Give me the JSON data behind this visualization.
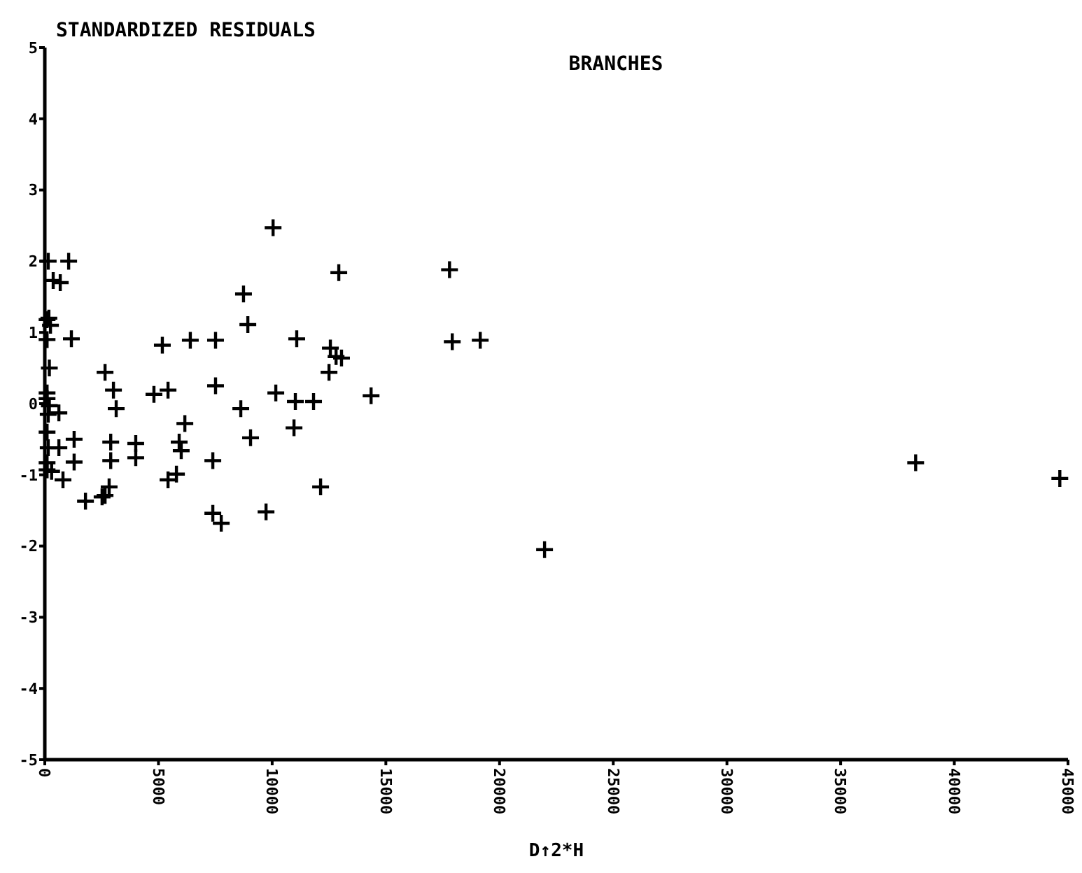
{
  "chart_data": {
    "type": "scatter",
    "title": "BRANCHES",
    "ylabel": "STANDARDIZED RESIDUALS",
    "xlabel": "D↑2*H",
    "marker": "cross",
    "grid": false,
    "xlim": [
      0,
      45000
    ],
    "ylim": [
      -5,
      5
    ],
    "xticks": [
      0,
      5000,
      10000,
      15000,
      20000,
      25000,
      30000,
      35000,
      40000,
      45000
    ],
    "yticks": [
      -5,
      -4,
      -3,
      -2,
      -1,
      0,
      1,
      2,
      3,
      4,
      5
    ],
    "series": [
      {
        "color": "#000000",
        "x": [
          10040,
          1050,
          370,
          680,
          180,
          250,
          1170,
          8740,
          8930,
          12930,
          17800,
          17920,
          19150,
          5170,
          6400,
          7510,
          11080,
          12560,
          12810,
          13050,
          12500,
          2650,
          3020,
          3140,
          4800,
          5420,
          7510,
          8620,
          10160,
          11020,
          11820,
          14350,
          6160,
          9050,
          10960,
          1290,
          2900,
          2900,
          4000,
          4000,
          5910,
          6000,
          7390,
          620,
          1290,
          300,
          100,
          800,
          2830,
          2650,
          1790,
          2520,
          5420,
          5790,
          7390,
          7760,
          9730,
          12130,
          21980,
          38300,
          44640,
          150,
          100,
          200,
          100,
          100,
          200,
          150,
          100,
          620,
          150,
          100,
          100
        ],
        "values": [
          2.47,
          2.0,
          1.73,
          1.7,
          1.2,
          1.1,
          0.91,
          1.54,
          1.11,
          1.84,
          1.88,
          0.87,
          0.89,
          0.82,
          0.89,
          0.89,
          0.91,
          0.78,
          0.66,
          0.64,
          0.44,
          0.44,
          0.19,
          -0.07,
          0.13,
          0.19,
          0.25,
          -0.07,
          0.15,
          0.03,
          0.03,
          0.11,
          -0.28,
          -0.48,
          -0.34,
          -0.5,
          -0.54,
          -0.8,
          -0.56,
          -0.76,
          -0.54,
          -0.66,
          -0.8,
          -0.62,
          -0.82,
          -0.95,
          -0.93,
          -1.07,
          -1.17,
          -1.29,
          -1.37,
          -1.31,
          -1.07,
          -0.99,
          -1.54,
          -1.68,
          -1.52,
          -1.17,
          -2.05,
          -0.83,
          -1.05,
          2.0,
          0.9,
          0.5,
          0.15,
          0.07,
          -0.03,
          -0.15,
          -0.4,
          -0.13,
          -0.62,
          -0.83,
          1.18
        ]
      }
    ]
  }
}
